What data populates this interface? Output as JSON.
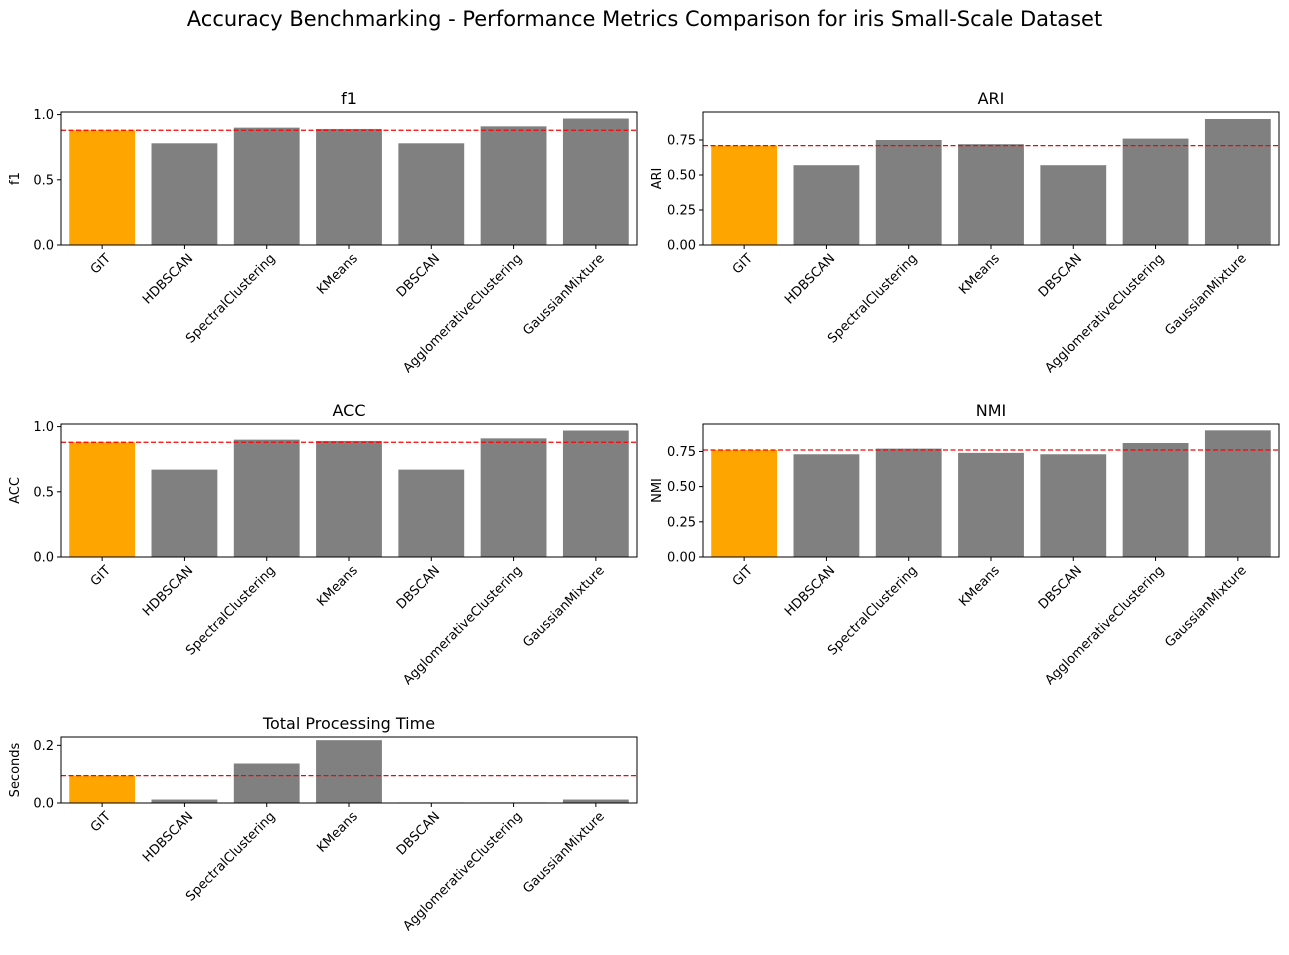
{
  "chart_data": {
    "suptitle": "Accuracy Benchmarking - Performance Metrics Comparison for iris Small-Scale Dataset",
    "colors": {
      "highlight": "#FFA500",
      "bar": "#808080",
      "baseline": "#FF0000"
    },
    "type": "bar",
    "charts": [
      {
        "type": "bar",
        "title": "f1",
        "ylabel": "f1",
        "categories": [
          "GIT",
          "HDBSCAN",
          "SpectralClustering",
          "KMeans",
          "DBSCAN",
          "AgglomerativeClustering",
          "GaussianMixture"
        ],
        "values": [
          0.88,
          0.78,
          0.9,
          0.89,
          0.78,
          0.91,
          0.97
        ],
        "ylim": [
          0,
          1.02
        ],
        "yticks": [
          0.0,
          0.5,
          1.0
        ],
        "ytick_labels": [
          "0.0",
          "0.5",
          "1.0"
        ],
        "baseline": 0.88
      },
      {
        "type": "bar",
        "title": "ARI",
        "ylabel": "ARI",
        "categories": [
          "GIT",
          "HDBSCAN",
          "SpectralClustering",
          "KMeans",
          "DBSCAN",
          "AgglomerativeClustering",
          "GaussianMixture"
        ],
        "values": [
          0.71,
          0.57,
          0.75,
          0.72,
          0.57,
          0.76,
          0.9
        ],
        "ylim": [
          0,
          0.95
        ],
        "yticks": [
          0.0,
          0.25,
          0.5,
          0.75
        ],
        "ytick_labels": [
          "0.00",
          "0.25",
          "0.50",
          "0.75"
        ],
        "baseline": 0.71
      },
      {
        "type": "bar",
        "title": "ACC",
        "ylabel": "ACC",
        "categories": [
          "GIT",
          "HDBSCAN",
          "SpectralClustering",
          "KMeans",
          "DBSCAN",
          "AgglomerativeClustering",
          "GaussianMixture"
        ],
        "values": [
          0.88,
          0.67,
          0.9,
          0.89,
          0.67,
          0.91,
          0.97
        ],
        "ylim": [
          0,
          1.02
        ],
        "yticks": [
          0.0,
          0.5,
          1.0
        ],
        "ytick_labels": [
          "0.0",
          "0.5",
          "1.0"
        ],
        "baseline": 0.88
      },
      {
        "type": "bar",
        "title": "NMI",
        "ylabel": "NMI",
        "categories": [
          "GIT",
          "HDBSCAN",
          "SpectralClustering",
          "KMeans",
          "DBSCAN",
          "AgglomerativeClustering",
          "GaussianMixture"
        ],
        "values": [
          0.76,
          0.73,
          0.77,
          0.74,
          0.73,
          0.81,
          0.9
        ],
        "ylim": [
          0,
          0.945
        ],
        "yticks": [
          0.0,
          0.25,
          0.5,
          0.75
        ],
        "ytick_labels": [
          "0.00",
          "0.25",
          "0.50",
          "0.75"
        ],
        "baseline": 0.76
      },
      {
        "type": "bar",
        "title": "Total Processing Time",
        "ylabel": "Seconds",
        "categories": [
          "GIT",
          "HDBSCAN",
          "SpectralClustering",
          "KMeans",
          "DBSCAN",
          "AgglomerativeClustering",
          "GaussianMixture"
        ],
        "values": [
          0.095,
          0.012,
          0.137,
          0.218,
          0.002,
          0.002,
          0.012
        ],
        "ylim": [
          0,
          0.229
        ],
        "yticks": [
          0.0,
          0.2
        ],
        "ytick_labels": [
          "0.0",
          "0.2"
        ],
        "baseline": 0.095
      }
    ]
  }
}
